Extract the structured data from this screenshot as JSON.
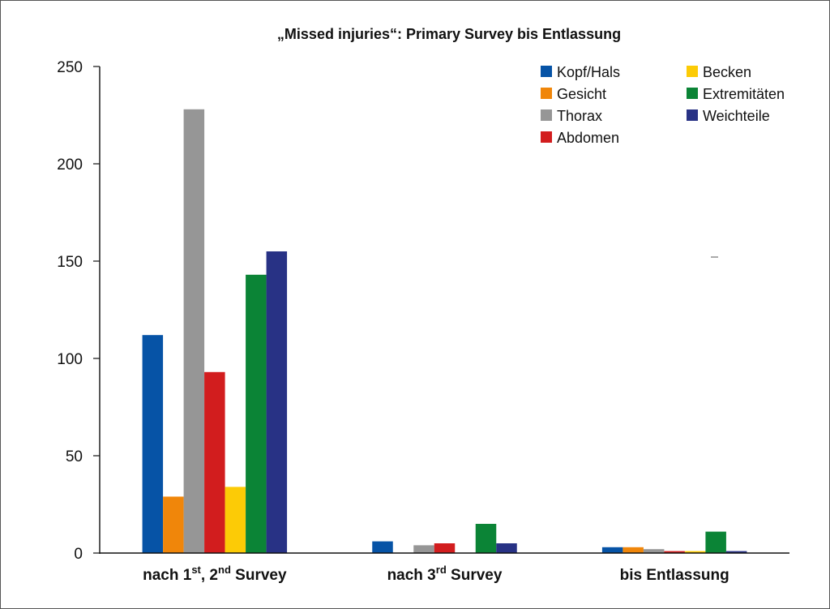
{
  "chart_data": {
    "type": "bar",
    "title": "„Missed injuries“: Primary Survey bis Entlassung",
    "xlabel": "",
    "ylabel": "",
    "ylim": [
      0,
      250
    ],
    "yticks": [
      0,
      50,
      100,
      150,
      200,
      250
    ],
    "grid": false,
    "legend_position": "top-right",
    "categories": [
      {
        "main": "nach 1",
        "sup1": "st",
        "mid": ", 2",
        "sup2": "nd",
        "end": " Survey"
      },
      {
        "main": "nach 3",
        "sup1": "rd",
        "mid": "",
        "sup2": "",
        "end": " Survey"
      },
      {
        "main": "bis Entlassung",
        "sup1": "",
        "mid": "",
        "sup2": "",
        "end": ""
      }
    ],
    "series": [
      {
        "name": "Kopf/Hals",
        "color": "#0653a6",
        "values": [
          112,
          6,
          3
        ]
      },
      {
        "name": "Gesicht",
        "color": "#f0860a",
        "values": [
          29,
          0,
          3
        ]
      },
      {
        "name": "Thorax",
        "color": "#969696",
        "values": [
          228,
          4,
          2
        ]
      },
      {
        "name": "Abdomen",
        "color": "#d21d1e",
        "values": [
          93,
          5,
          1
        ]
      },
      {
        "name": "Becken",
        "color": "#fccb06",
        "values": [
          34,
          0,
          1
        ]
      },
      {
        "name": "Extremitäten",
        "color": "#0b8436",
        "values": [
          143,
          15,
          11
        ]
      },
      {
        "name": "Weichteile",
        "color": "#283285",
        "values": [
          155,
          5,
          1
        ]
      }
    ]
  }
}
